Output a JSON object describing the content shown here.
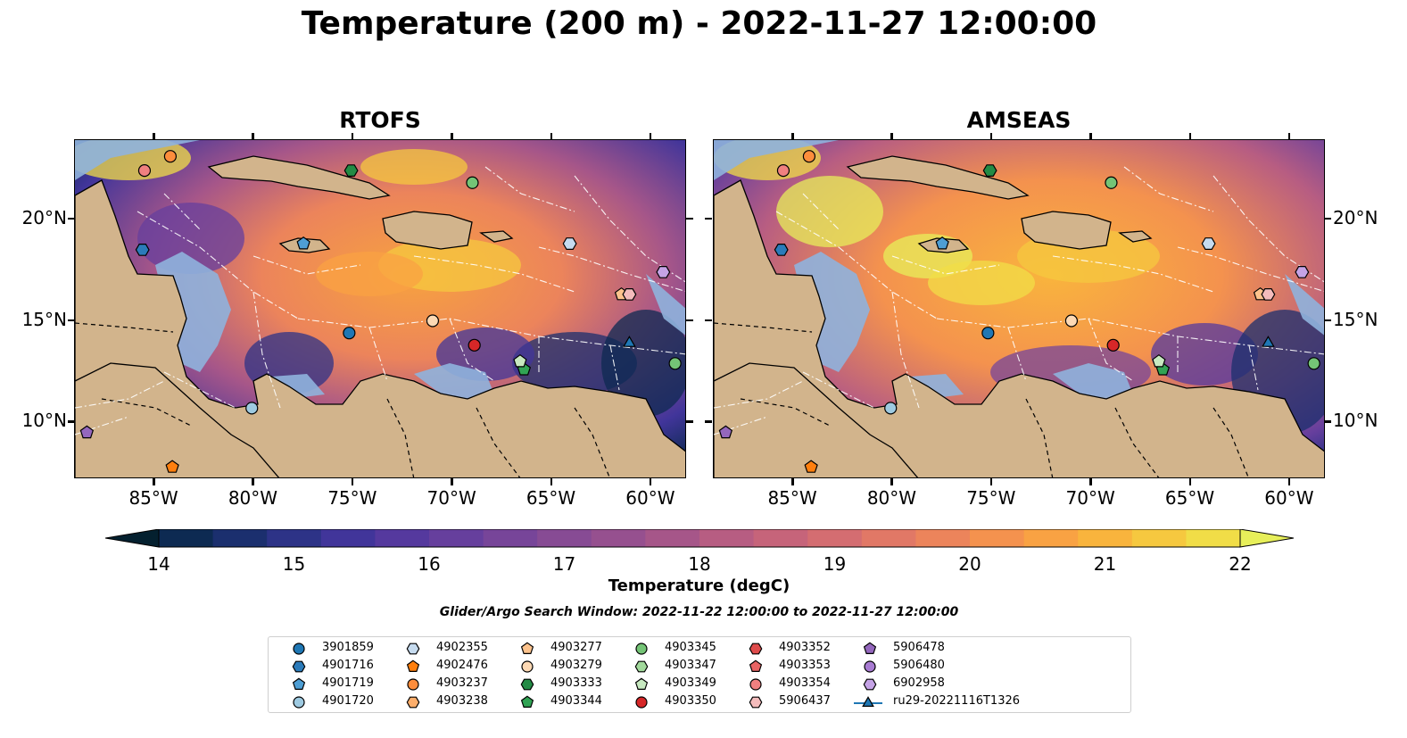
{
  "title": "Temperature (200 m) - 2022-11-27 12:00:00",
  "panels": [
    {
      "title": "RTOFS"
    },
    {
      "title": "AMSEAS"
    }
  ],
  "axes": {
    "lon_ticks": [
      "85°W",
      "80°W",
      "75°W",
      "70°W",
      "65°W",
      "60°W"
    ],
    "lat_ticks": [
      "20°N",
      "15°N",
      "10°N"
    ],
    "lon_values": [
      -85,
      -80,
      -75,
      -70,
      -65,
      -60
    ],
    "lat_values": [
      20,
      15,
      10
    ],
    "lon_range": [
      -89,
      -58.2
    ],
    "lat_range": [
      7.2,
      23.9
    ]
  },
  "colorbar": {
    "label": "Temperature (degC)",
    "range": [
      14,
      22
    ],
    "tick_values": [
      "14",
      "15",
      "16",
      "17",
      "18",
      "19",
      "20",
      "21",
      "22"
    ],
    "colors": [
      "#04202f",
      "#0d2a52",
      "#1b2f6e",
      "#2d3387",
      "#41359a",
      "#55399e",
      "#663f9d",
      "#774599",
      "#874b94",
      "#96508f",
      "#a65689",
      "#b75d82",
      "#c6647a",
      "#d46d71",
      "#e17866",
      "#ec845b",
      "#f4924e",
      "#f9a243",
      "#f9b43d",
      "#f6c83f",
      "#f1dd47",
      "#e7ef5a"
    ],
    "extend": "both"
  },
  "search_window": "Glider/Argo Search Window: 2022-11-22 12:00:00 to 2022-11-27 12:00:00",
  "legend": [
    {
      "label": "3901859",
      "marker": "circle",
      "color": "#1f77b4"
    },
    {
      "label": "4901716",
      "marker": "hexagon",
      "color": "#2b7bba"
    },
    {
      "label": "4901719",
      "marker": "pentagon",
      "color": "#4e9ed4"
    },
    {
      "label": "4901720",
      "marker": "circle",
      "color": "#9ecae1"
    },
    {
      "label": "4902355",
      "marker": "hexagon",
      "color": "#c6dbef"
    },
    {
      "label": "4902476",
      "marker": "pentagon",
      "color": "#ff7f0e"
    },
    {
      "label": "4903237",
      "marker": "circle",
      "color": "#fd8d3c"
    },
    {
      "label": "4903238",
      "marker": "hexagon",
      "color": "#fdae6b"
    },
    {
      "label": "4903277",
      "marker": "pentagon",
      "color": "#fdc38d"
    },
    {
      "label": "4903279",
      "marker": "circle",
      "color": "#fdd9b4"
    },
    {
      "label": "4903333",
      "marker": "hexagon",
      "color": "#238b45"
    },
    {
      "label": "4903344",
      "marker": "pentagon",
      "color": "#31a354"
    },
    {
      "label": "4903345",
      "marker": "circle",
      "color": "#74c476"
    },
    {
      "label": "4903347",
      "marker": "hexagon",
      "color": "#a1d99b"
    },
    {
      "label": "4903349",
      "marker": "pentagon",
      "color": "#c7e9c0"
    },
    {
      "label": "4903350",
      "marker": "circle",
      "color": "#d62728"
    },
    {
      "label": "4903352",
      "marker": "hexagon",
      "color": "#de4b4b"
    },
    {
      "label": "4903353",
      "marker": "pentagon",
      "color": "#e86464"
    },
    {
      "label": "4903354",
      "marker": "circle",
      "color": "#f08080"
    },
    {
      "label": "5906437",
      "marker": "hexagon",
      "color": "#f4bcbc"
    },
    {
      "label": "5906478",
      "marker": "pentagon",
      "color": "#9467bd"
    },
    {
      "label": "5906480",
      "marker": "circle",
      "color": "#a87bd2"
    },
    {
      "label": "6902958",
      "marker": "hexagon",
      "color": "#c5a3e6"
    },
    {
      "label": "ru29-20221116T1326",
      "marker": "triangle-line",
      "color": "#1f77b4"
    }
  ],
  "stations": [
    {
      "id": "3901859",
      "lon": -75.2,
      "lat": 14.4
    },
    {
      "id": "4901716",
      "lon": -85.6,
      "lat": 18.5
    },
    {
      "id": "4901719",
      "lon": -77.5,
      "lat": 18.8
    },
    {
      "id": "4901720",
      "lon": -80.1,
      "lat": 10.7
    },
    {
      "id": "4902355",
      "lon": -64.1,
      "lat": 18.8
    },
    {
      "id": "4902476",
      "lon": -84.1,
      "lat": 7.8
    },
    {
      "id": "4903237",
      "lon": -84.2,
      "lat": 23.1
    },
    {
      "id": "4903277",
      "lon": -61.5,
      "lat": 16.3
    },
    {
      "id": "4903279",
      "lon": -71.0,
      "lat": 15.0
    },
    {
      "id": "4903333",
      "lon": -75.1,
      "lat": 22.4
    },
    {
      "id": "4903344",
      "lon": -66.4,
      "lat": 12.6
    },
    {
      "id": "4903345",
      "lon": -69.0,
      "lat": 21.8
    },
    {
      "id": "4903345",
      "lon": -58.8,
      "lat": 12.9
    },
    {
      "id": "4903349",
      "lon": -66.6,
      "lat": 13.0
    },
    {
      "id": "4903350",
      "lon": -68.9,
      "lat": 13.8
    },
    {
      "id": "4903354",
      "lon": -85.5,
      "lat": 22.4
    },
    {
      "id": "5906437",
      "lon": -61.1,
      "lat": 16.3
    },
    {
      "id": "5906478",
      "lon": -88.4,
      "lat": 9.5
    },
    {
      "id": "6902958",
      "lon": -59.4,
      "lat": 17.4
    },
    {
      "id": "ru29-20221116T1326",
      "lon": -61.1,
      "lat": 13.9
    }
  ]
}
